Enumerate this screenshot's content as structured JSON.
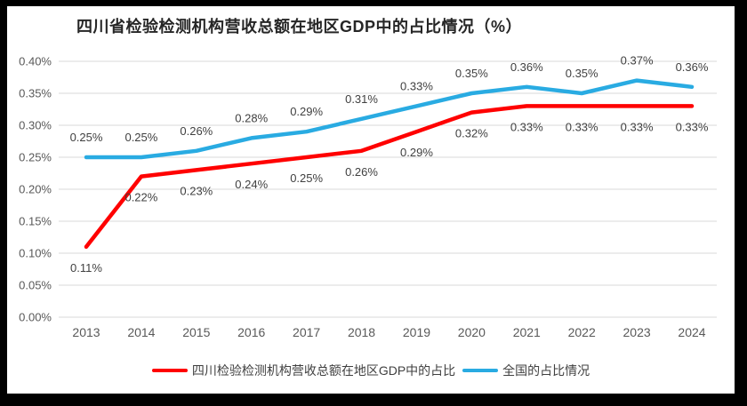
{
  "frame": {
    "border_color": "#000000",
    "card_background": "#FFFFFF"
  },
  "chart_data": {
    "type": "line",
    "title": "四川省检验检测机构营收总额在地区GDP中的占比情况（%）",
    "xlabel": "",
    "ylabel": "",
    "categories": [
      "2013",
      "2014",
      "2015",
      "2016",
      "2017",
      "2018",
      "2019",
      "2020",
      "2021",
      "2022",
      "2023",
      "2024"
    ],
    "series": [
      {
        "name": "四川检验检测机构营收总额在地区GDP中的占比",
        "color": "#FF0000",
        "values": [
          0.11,
          0.22,
          0.23,
          0.24,
          0.25,
          0.26,
          0.29,
          0.32,
          0.33,
          0.33,
          0.33,
          0.33
        ],
        "labels": [
          "0.11%",
          "0.22%",
          "0.23%",
          "0.24%",
          "0.25%",
          "0.26%",
          "0.29%",
          "0.32%",
          "0.33%",
          "0.33%",
          "0.33%",
          "0.33%"
        ],
        "label_position": "below"
      },
      {
        "name": "全国的占比情况",
        "color": "#29ABE2",
        "values": [
          0.25,
          0.25,
          0.26,
          0.28,
          0.29,
          0.31,
          0.33,
          0.35,
          0.36,
          0.35,
          0.37,
          0.36
        ],
        "labels": [
          "0.25%",
          "0.25%",
          "0.26%",
          "0.28%",
          "0.29%",
          "0.31%",
          "0.33%",
          "0.35%",
          "0.36%",
          "0.35%",
          "0.37%",
          "0.36%"
        ],
        "label_position": "above"
      }
    ],
    "ylim": [
      0,
      0.4
    ],
    "y_tick_step": 0.05,
    "y_tick_labels": [
      "0.40%",
      "0.35%",
      "0.30%",
      "0.25%",
      "0.20%",
      "0.15%",
      "0.10%",
      "0.05%",
      "0.00%"
    ],
    "value_unit": "%",
    "grid": true,
    "legend_position": "bottom",
    "gridline_color": "#D9D9D9",
    "axis_label_color": "#595959",
    "data_label_color": "#404040",
    "title_color": "#262626"
  }
}
